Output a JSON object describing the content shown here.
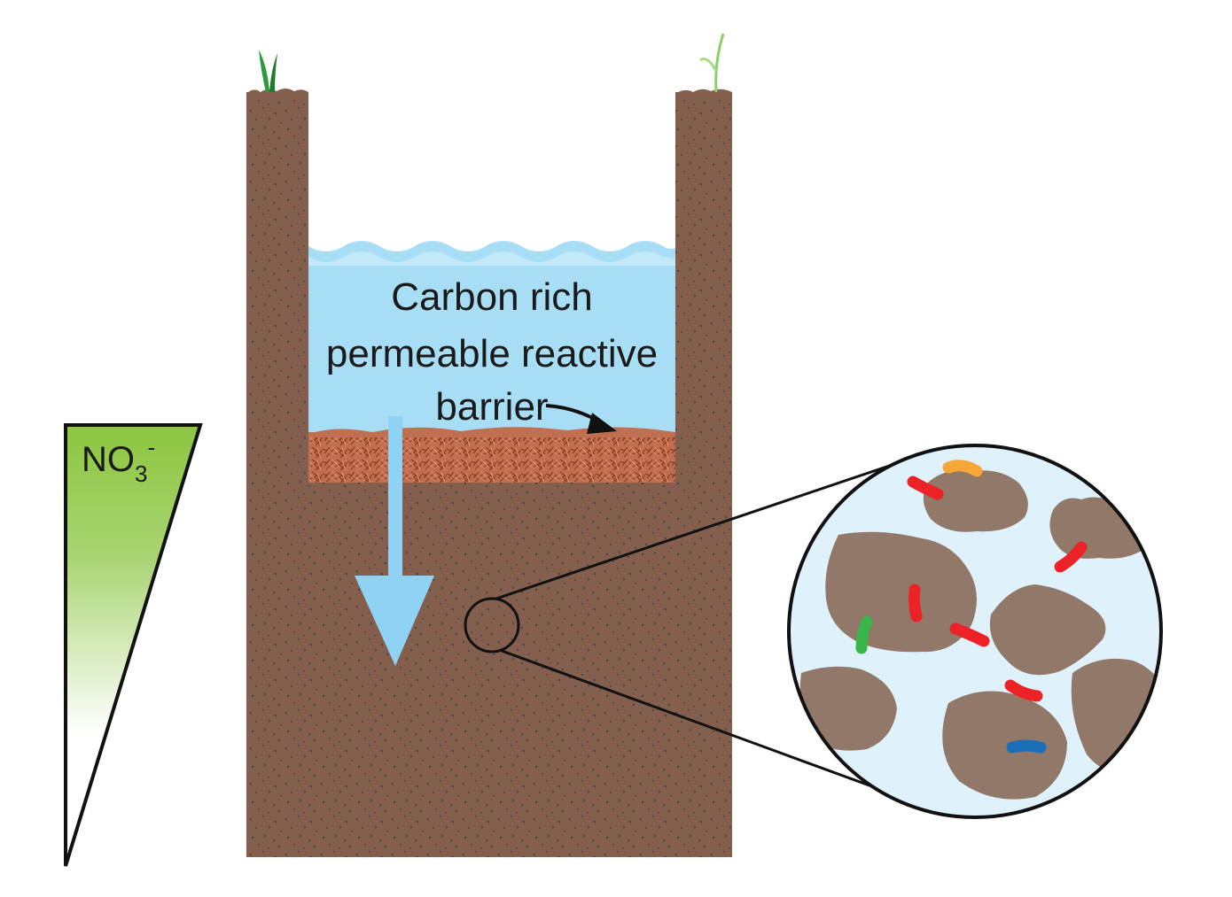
{
  "barrier_label": {
    "line1": "Carbon rich",
    "line2": "permeable reactive",
    "line3": "barrier"
  },
  "nitrate_label": {
    "base": "NO",
    "subscript": "3",
    "superscript": "-"
  },
  "colors": {
    "soil": "#845f4d",
    "soil_speck": "#3e4741",
    "water": "#a8def5",
    "water_light": "#cdeefb",
    "mulch": "#b9603c",
    "arrow": "#8fd2f3",
    "gradient_top": "#8cc63f",
    "zoom_background": "#dff1fb",
    "grain": "#917868",
    "bacteria": [
      "#ec2227",
      "#f7a738",
      "#3bb54a",
      "#1b6fb8"
    ]
  }
}
